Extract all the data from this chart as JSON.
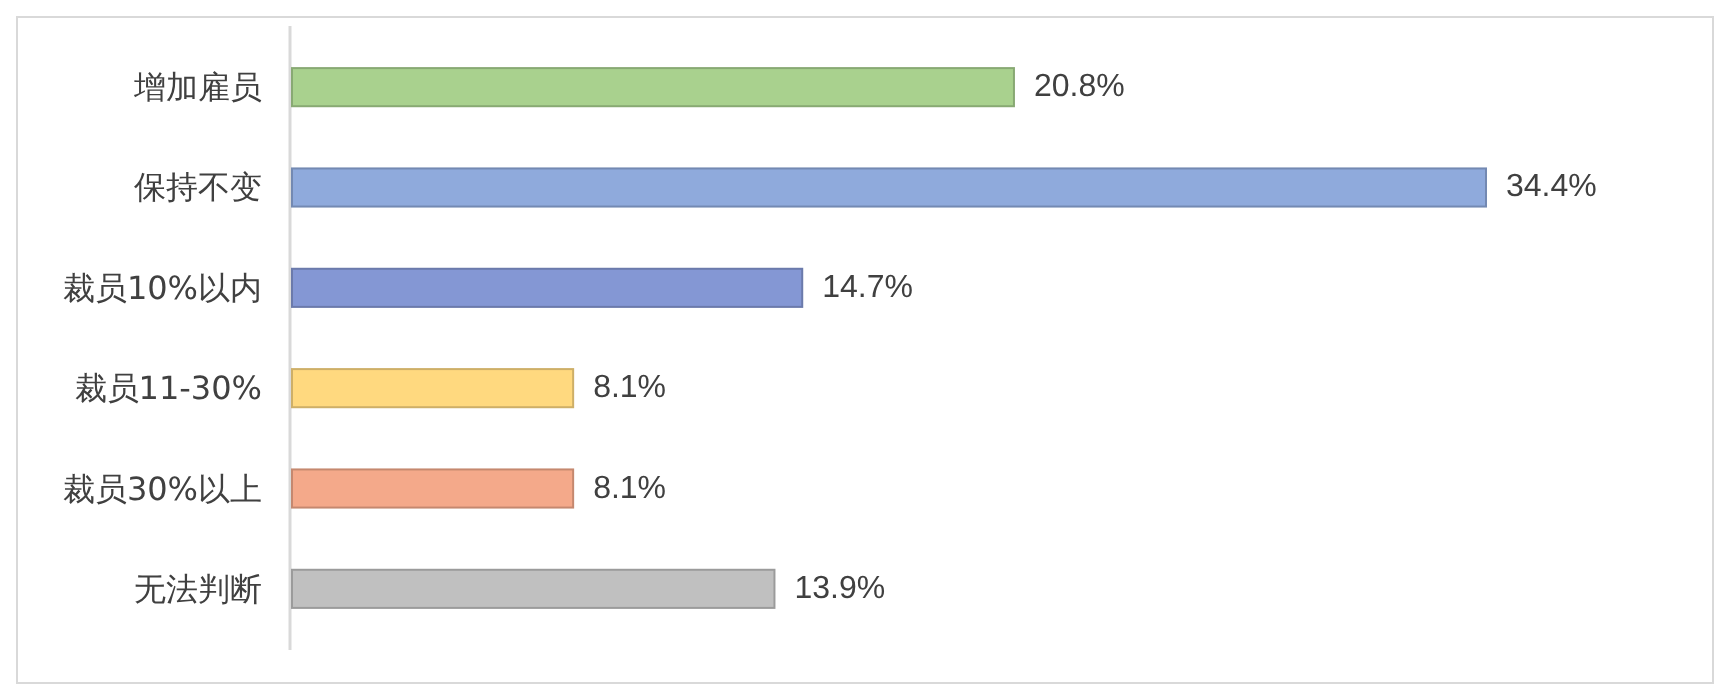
{
  "chart_data": {
    "type": "bar",
    "orientation": "horizontal",
    "categories": [
      "增加雇员",
      "保持不变",
      "裁员10%以内",
      "裁员11-30%",
      "裁员30%以上",
      "无法判断"
    ],
    "values": [
      20.8,
      34.4,
      14.7,
      8.1,
      8.1,
      13.9
    ],
    "colors": [
      "#a9d18e",
      "#8faadc",
      "#8497d4",
      "#ffd97f",
      "#f4a98a",
      "#c0c0c0"
    ],
    "value_labels": [
      "20.8%",
      "34.4%",
      "14.7%",
      "8.1%",
      "8.1%",
      "13.9%"
    ]
  }
}
